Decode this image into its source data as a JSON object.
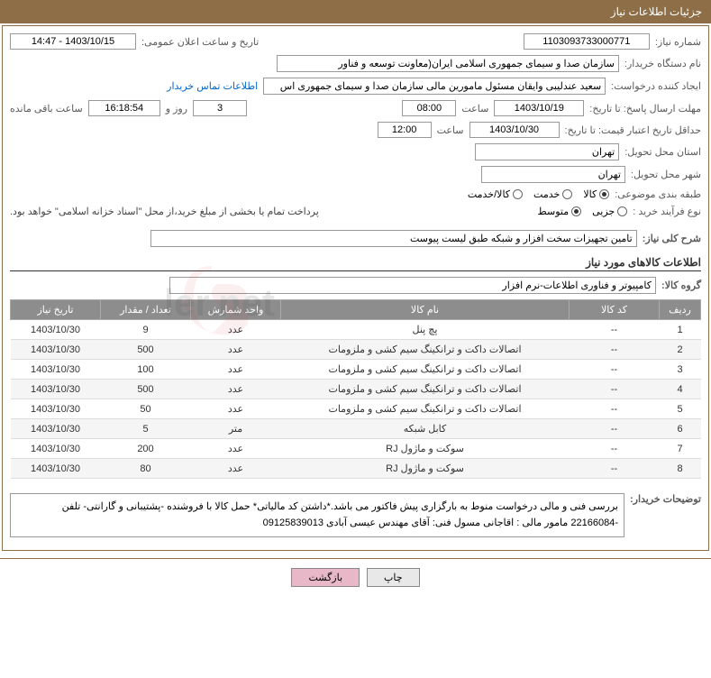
{
  "header": {
    "title": "جزئیات اطلاعات نیاز"
  },
  "fields": {
    "need_number_label": "شماره نیاز:",
    "need_number": "1103093733000771",
    "announce_label": "تاریخ و ساعت اعلان عمومی:",
    "announce_value": "1403/10/15 - 14:47",
    "buyer_label": "نام دستگاه خریدار:",
    "buyer_value": "سازمان صدا و سیمای جمهوری اسلامی ایران(معاونت توسعه و فناور",
    "requester_label": "ایجاد کننده درخواست:",
    "requester_value": "سعید عندلیبی وایقان مسئول مامورین مالی  سازمان صدا و سیمای جمهوری اس",
    "contact_link": "اطلاعات تماس خریدار",
    "deadline_label": "مهلت ارسال پاسخ: تا تاریخ:",
    "deadline_date": "1403/10/19",
    "time_label": "ساعت",
    "deadline_time": "08:00",
    "days_remaining": "3",
    "days_text": "روز و",
    "time_remaining": "16:18:54",
    "remaining_text": "ساعت باقی مانده",
    "validity_label": "حداقل تاریخ اعتبار قیمت: تا تاریخ:",
    "validity_date": "1403/10/30",
    "validity_time": "12:00",
    "province_label": "استان محل تحویل:",
    "province_value": "تهران",
    "city_label": "شهر محل تحویل:",
    "city_value": "تهران",
    "category_label": "طبقه بندی موضوعی:",
    "cat_kala": "کالا",
    "cat_khedmat": "خدمت",
    "cat_kalakhedmat": "کالا/خدمت",
    "process_label": "نوع فرآیند خرید :",
    "proc_jozi": "جزیی",
    "proc_medium": "متوسط",
    "payment_note": "پرداخت تمام یا بخشی از مبلغ خرید،از محل \"اسناد خزانه اسلامی\" خواهد بود.",
    "general_label": "شرح کلی نیاز:",
    "general_value": "تامین تجهیزات سخت افزار و شبکه طبق لیست پیوست",
    "goods_info_title": "اطلاعات کالاهای مورد نیاز",
    "group_label": "گروه کالا:",
    "group_value": "کامپیوتر و فناوری اطلاعات-نرم افزار",
    "buyer_desc_label": "توضیحات خریدار:",
    "buyer_desc_value": "بررسی فنی و مالی درخواست منوط به بارگزاری پیش فاکتور می باشد.*داشتن کد مالیاتی*  حمل کالا با فروشنده -پشتیبانی و گارانتی- تلفن -22166084 مامور مالی : اقاجانی مسول فنی:  آقای مهندس عیسی آبادی 09125839013"
  },
  "table": {
    "headers": {
      "row": "ردیف",
      "code": "کد کالا",
      "name": "نام کالا",
      "unit": "واحد شمارش",
      "qty": "تعداد / مقدار",
      "date": "تاریخ نیاز"
    },
    "rows": [
      {
        "row": "1",
        "code": "--",
        "name": "پچ پنل",
        "unit": "عدد",
        "qty": "9",
        "date": "1403/10/30"
      },
      {
        "row": "2",
        "code": "--",
        "name": "اتصالات داکت و ترانکینگ سیم کشی و ملزومات",
        "unit": "عدد",
        "qty": "500",
        "date": "1403/10/30"
      },
      {
        "row": "3",
        "code": "--",
        "name": "اتصالات داکت و ترانکینگ سیم کشی و ملزومات",
        "unit": "عدد",
        "qty": "100",
        "date": "1403/10/30"
      },
      {
        "row": "4",
        "code": "--",
        "name": "اتصالات داکت و ترانکینگ سیم کشی و ملزومات",
        "unit": "عدد",
        "qty": "500",
        "date": "1403/10/30"
      },
      {
        "row": "5",
        "code": "--",
        "name": "اتصالات داکت و ترانکینگ سیم کشی و ملزومات",
        "unit": "عدد",
        "qty": "50",
        "date": "1403/10/30"
      },
      {
        "row": "6",
        "code": "--",
        "name": "کابل شبکه",
        "unit": "متر",
        "qty": "5",
        "date": "1403/10/30"
      },
      {
        "row": "7",
        "code": "--",
        "name": "سوکت و ماژول RJ",
        "unit": "عدد",
        "qty": "200",
        "date": "1403/10/30"
      },
      {
        "row": "8",
        "code": "--",
        "name": "سوکت و ماژول RJ",
        "unit": "عدد",
        "qty": "80",
        "date": "1403/10/30"
      }
    ]
  },
  "buttons": {
    "print": "چاپ",
    "back": "بازگشت"
  },
  "colors": {
    "header_bg": "#8d6e46",
    "th_bg": "#8d8d8d",
    "link": "#0066cc",
    "back_btn": "#e8b8c8"
  }
}
